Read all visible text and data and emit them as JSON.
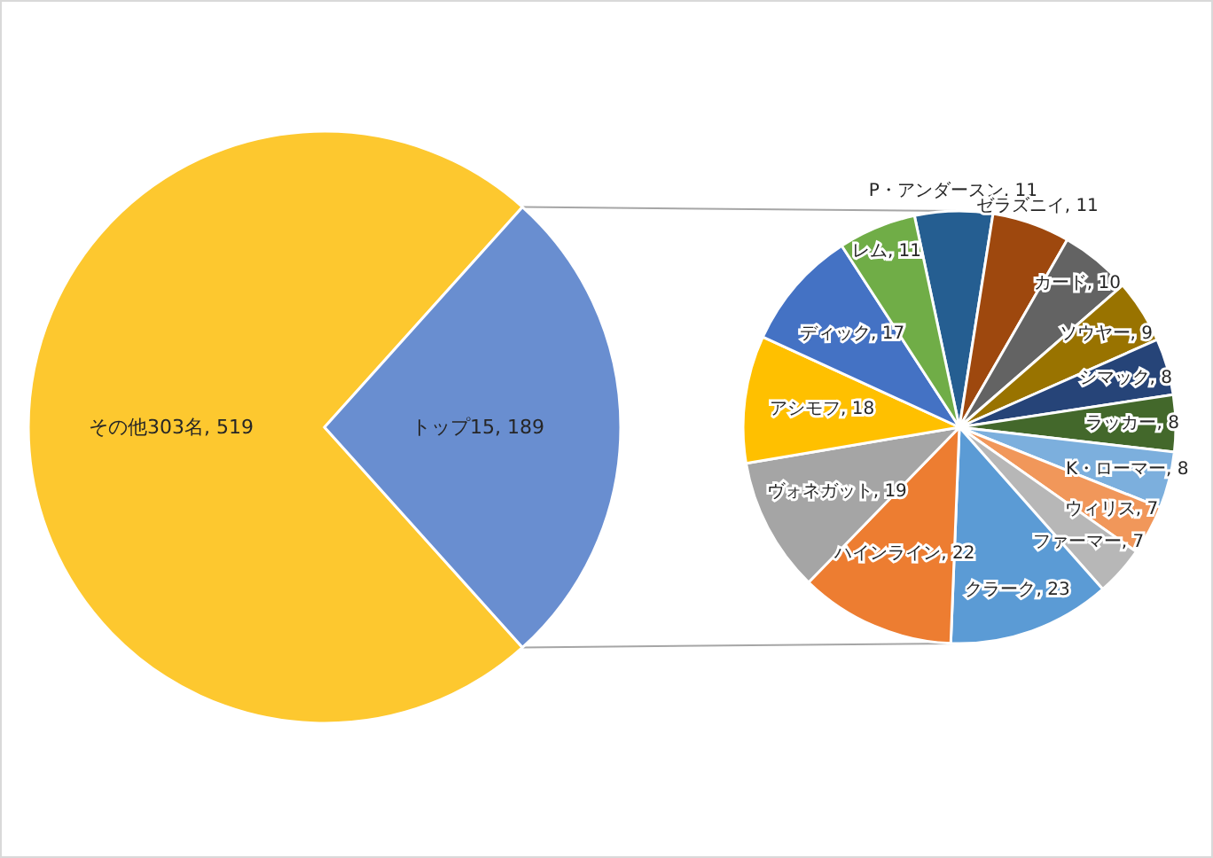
{
  "chart_data": [
    {
      "type": "pie",
      "categories": [
        "その他303名",
        "トップ15"
      ],
      "values": [
        519,
        189
      ],
      "colors": [
        "#fdc82f",
        "#698ed0"
      ],
      "value_labels": [
        ", 519",
        ", 189"
      ]
    },
    {
      "type": "pie",
      "categories": [
        "P・アンダースン",
        "ゼラズニイ",
        "カード",
        "ソウヤー",
        "シマック",
        "ラッカー",
        "K・ローマー",
        "ウィリス",
        "ファーマー",
        "クラーク",
        "ハインライン",
        "ヴォネガット",
        "アシモフ",
        "ディック",
        "レム"
      ],
      "values": [
        11,
        11,
        10,
        9,
        8,
        8,
        8,
        7,
        7,
        23,
        22,
        19,
        18,
        17,
        11
      ],
      "colors": [
        "#255e91",
        "#9e480e",
        "#636363",
        "#997300",
        "#264478",
        "#43682b",
        "#7cafdd",
        "#f1975a",
        "#b7b7b7",
        "#5b9bd5",
        "#ed7d31",
        "#a5a5a5",
        "#ffc000",
        "#4472c4",
        "#70ad47"
      ],
      "value_labels": [
        ", 11",
        ", 11",
        ", 10",
        ", 9",
        ", 8",
        ", 8",
        ", 8",
        ", 7",
        ", 7",
        ", 23",
        ", 22",
        ", 19",
        ", 18",
        ", 17",
        ", 11"
      ]
    }
  ]
}
